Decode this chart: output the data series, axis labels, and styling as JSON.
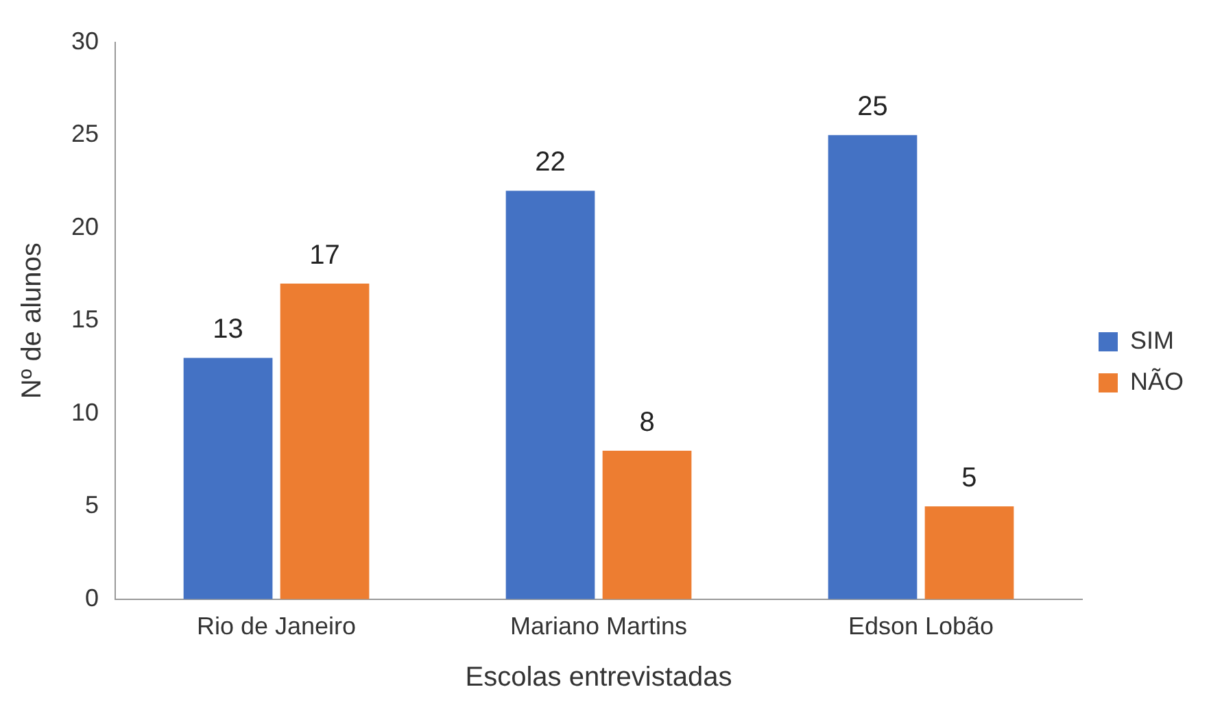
{
  "chart_data": {
    "type": "bar",
    "xlabel": "Escolas entrevistadas",
    "ylabel": "Nº de alunos",
    "categories": [
      "Rio de Janeiro",
      "Mariano Martins",
      "Edson Lobão"
    ],
    "series": [
      {
        "name": "SIM",
        "color": "#4472c4",
        "values": [
          13,
          22,
          25
        ]
      },
      {
        "name": "NÃO",
        "color": "#ed7d31",
        "values": [
          17,
          8,
          5
        ]
      }
    ],
    "ylim": [
      0,
      30
    ],
    "yticks": [
      0,
      5,
      10,
      15,
      20,
      25,
      30
    ],
    "grid": false,
    "legend": "right",
    "data_labels": true
  }
}
